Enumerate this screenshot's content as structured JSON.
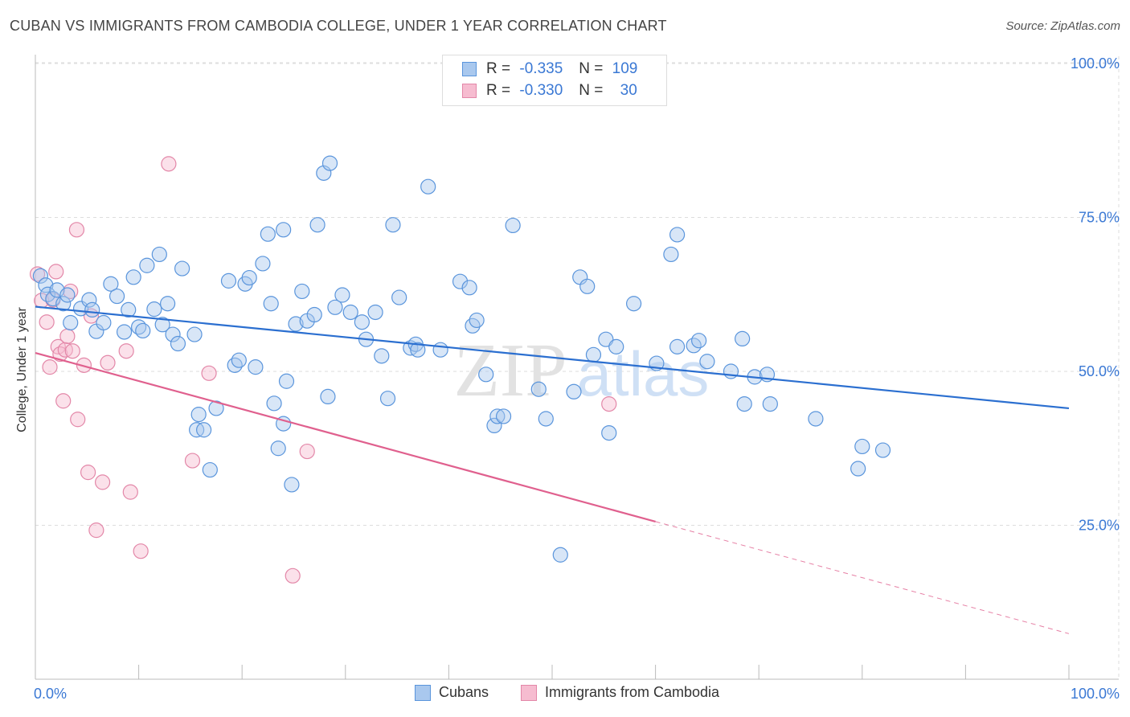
{
  "header": {
    "title": "CUBAN VS IMMIGRANTS FROM CAMBODIA COLLEGE, UNDER 1 YEAR CORRELATION CHART",
    "source": "Source: ZipAtlas.com"
  },
  "legend": {
    "rows": [
      {
        "r_label": "R =",
        "r_value": "-0.335",
        "n_label": "N =",
        "n_value": "109"
      },
      {
        "r_label": "R =",
        "r_value": "-0.330",
        "n_label": "N =",
        "n_value": "30"
      }
    ]
  },
  "watermark": {
    "zip": "ZIP",
    "atlas": "atlas"
  },
  "colors": {
    "blue_fill": "#a9c8ee",
    "blue_stroke": "#5a95dc",
    "blue_line": "#2b6fd0",
    "pink_fill": "#f6bcd0",
    "pink_stroke": "#e387a8",
    "pink_line": "#e0608e",
    "axis_text": "#3a78d4",
    "grid": "#dddddd"
  },
  "chart_data": {
    "type": "scatter",
    "title": "CUBAN VS IMMIGRANTS FROM CAMBODIA COLLEGE, UNDER 1 YEAR CORRELATION CHART",
    "xlabel": "",
    "ylabel": "College, Under 1 year",
    "xlim": [
      0,
      100
    ],
    "ylim": [
      0,
      105
    ],
    "x_tick_labels": [
      "0.0%",
      "100.0%"
    ],
    "y_ticks": [
      25,
      50,
      75,
      100
    ],
    "y_tick_labels": [
      "25.0%",
      "50.0%",
      "75.0%",
      "100.0%"
    ],
    "grid": true,
    "legend_position": "top-center",
    "series": [
      {
        "name": "Cubans",
        "r": -0.335,
        "n": 109,
        "trend": {
          "x": [
            0,
            100
          ],
          "y": [
            60.5,
            44.0
          ]
        },
        "points": [
          [
            0.5,
            65.5
          ],
          [
            1.0,
            64.0
          ],
          [
            1.2,
            62.5
          ],
          [
            1.7,
            61.8
          ],
          [
            2.1,
            63.2
          ],
          [
            2.7,
            61.0
          ],
          [
            3.1,
            62.4
          ],
          [
            3.4,
            57.9
          ],
          [
            4.4,
            60.2
          ],
          [
            5.2,
            61.6
          ],
          [
            5.5,
            60.0
          ],
          [
            5.9,
            56.5
          ],
          [
            6.6,
            57.9
          ],
          [
            7.3,
            64.2
          ],
          [
            7.9,
            62.2
          ],
          [
            8.6,
            56.4
          ],
          [
            9.0,
            60.0
          ],
          [
            9.5,
            65.3
          ],
          [
            10.0,
            57.2
          ],
          [
            10.4,
            56.6
          ],
          [
            10.8,
            67.2
          ],
          [
            11.5,
            60.1
          ],
          [
            12.0,
            69.0
          ],
          [
            12.3,
            57.6
          ],
          [
            12.8,
            61.0
          ],
          [
            13.3,
            56.0
          ],
          [
            13.8,
            54.5
          ],
          [
            14.2,
            66.7
          ],
          [
            15.4,
            56.0
          ],
          [
            15.8,
            43.0
          ],
          [
            15.6,
            40.5
          ],
          [
            16.3,
            40.5
          ],
          [
            16.9,
            34.0
          ],
          [
            17.5,
            44.0
          ],
          [
            18.7,
            64.7
          ],
          [
            19.3,
            51.0
          ],
          [
            19.7,
            51.8
          ],
          [
            20.3,
            64.2
          ],
          [
            20.7,
            65.2
          ],
          [
            21.3,
            50.7
          ],
          [
            22.0,
            67.5
          ],
          [
            22.5,
            72.3
          ],
          [
            22.8,
            61.0
          ],
          [
            23.1,
            44.8
          ],
          [
            24.0,
            73.0
          ],
          [
            23.5,
            37.5
          ],
          [
            24.3,
            48.4
          ],
          [
            24.0,
            41.5
          ],
          [
            24.8,
            31.6
          ],
          [
            25.2,
            57.7
          ],
          [
            25.8,
            63.0
          ],
          [
            26.3,
            58.2
          ],
          [
            27.0,
            59.2
          ],
          [
            27.3,
            73.8
          ],
          [
            28.3,
            45.9
          ],
          [
            27.9,
            82.2
          ],
          [
            28.5,
            83.8
          ],
          [
            29.0,
            60.4
          ],
          [
            29.7,
            62.4
          ],
          [
            30.5,
            59.6
          ],
          [
            31.6,
            58.0
          ],
          [
            32.0,
            55.2
          ],
          [
            32.9,
            59.6
          ],
          [
            33.5,
            52.5
          ],
          [
            34.1,
            45.6
          ],
          [
            34.6,
            73.8
          ],
          [
            35.2,
            62.0
          ],
          [
            36.3,
            53.8
          ],
          [
            36.8,
            54.4
          ],
          [
            37.0,
            53.5
          ],
          [
            38.0,
            80.0
          ],
          [
            39.2,
            53.5
          ],
          [
            41.1,
            64.6
          ],
          [
            42.0,
            63.6
          ],
          [
            42.3,
            57.4
          ],
          [
            42.7,
            58.3
          ],
          [
            43.6,
            49.5
          ],
          [
            44.4,
            41.2
          ],
          [
            44.7,
            42.7
          ],
          [
            45.3,
            42.7
          ],
          [
            46.2,
            73.7
          ],
          [
            48.7,
            47.1
          ],
          [
            49.4,
            42.3
          ],
          [
            50.8,
            20.2
          ],
          [
            52.1,
            46.7
          ],
          [
            52.7,
            65.3
          ],
          [
            53.4,
            63.8
          ],
          [
            54.0,
            52.7
          ],
          [
            55.2,
            55.2
          ],
          [
            55.5,
            40.0
          ],
          [
            56.2,
            54.0
          ],
          [
            57.9,
            61.0
          ],
          [
            60.1,
            51.3
          ],
          [
            61.5,
            69.0
          ],
          [
            62.1,
            72.2
          ],
          [
            62.1,
            54.0
          ],
          [
            63.7,
            54.2
          ],
          [
            64.2,
            55.0
          ],
          [
            65.0,
            51.6
          ],
          [
            67.3,
            50.0
          ],
          [
            68.4,
            55.3
          ],
          [
            68.6,
            44.7
          ],
          [
            69.6,
            49.1
          ],
          [
            70.8,
            49.5
          ],
          [
            71.1,
            44.7
          ],
          [
            75.5,
            42.3
          ],
          [
            79.6,
            34.2
          ],
          [
            80.0,
            37.8
          ],
          [
            82.0,
            37.2
          ]
        ]
      },
      {
        "name": "Immigrants from Cambodia",
        "r": -0.33,
        "n": 30,
        "trend": {
          "x": [
            0,
            60,
            100
          ],
          "y": [
            53.0,
            25.6,
            7.4
          ],
          "solid_until": 60
        },
        "points": [
          [
            0.2,
            65.8
          ],
          [
            0.6,
            61.5
          ],
          [
            1.1,
            58.0
          ],
          [
            1.4,
            50.7
          ],
          [
            1.7,
            61.6
          ],
          [
            2.0,
            66.2
          ],
          [
            2.2,
            54.0
          ],
          [
            2.4,
            52.8
          ],
          [
            2.7,
            45.2
          ],
          [
            2.9,
            53.5
          ],
          [
            3.1,
            55.7
          ],
          [
            3.4,
            63.0
          ],
          [
            3.6,
            53.3
          ],
          [
            4.1,
            42.2
          ],
          [
            4.0,
            73.0
          ],
          [
            4.7,
            51.0
          ],
          [
            5.1,
            33.6
          ],
          [
            5.4,
            59.0
          ],
          [
            5.9,
            24.2
          ],
          [
            6.5,
            32.0
          ],
          [
            7.0,
            51.4
          ],
          [
            8.8,
            53.3
          ],
          [
            9.2,
            30.4
          ],
          [
            10.2,
            20.8
          ],
          [
            12.9,
            83.7
          ],
          [
            15.2,
            35.5
          ],
          [
            16.8,
            49.7
          ],
          [
            24.9,
            16.8
          ],
          [
            26.3,
            37.0
          ],
          [
            55.5,
            44.7
          ]
        ]
      }
    ]
  },
  "bottom_legend": {
    "items": [
      {
        "label": "Cubans"
      },
      {
        "label": "Immigrants from Cambodia"
      }
    ]
  }
}
